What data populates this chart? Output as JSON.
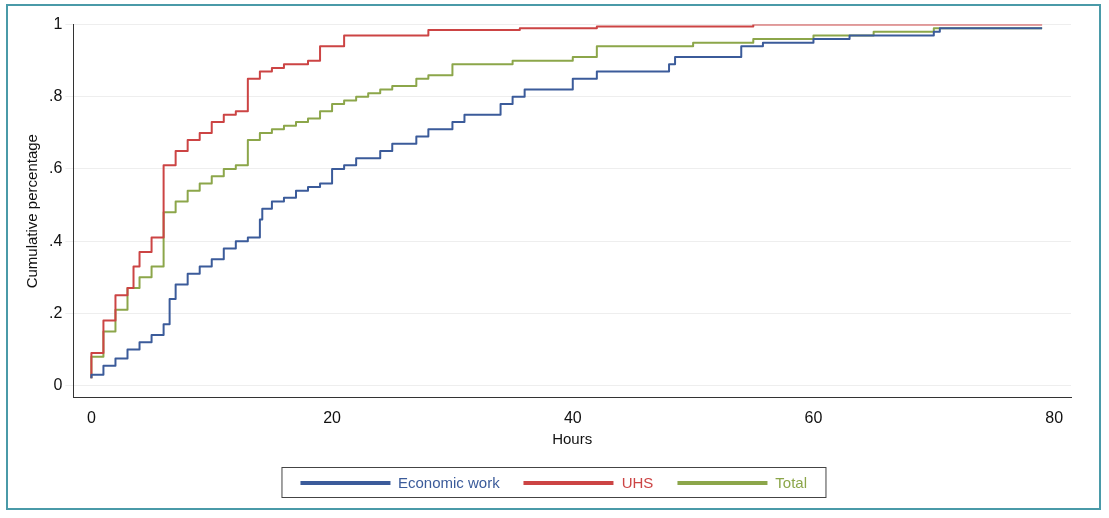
{
  "chart_data": {
    "type": "step",
    "xlabel": "Hours",
    "ylabel": "Cumulative percentage",
    "xlim": [
      -1.5,
      81.4
    ],
    "xticks": [
      0,
      20,
      40,
      60,
      80
    ],
    "ylim": [
      -0.034,
      1
    ],
    "yticks": [
      0,
      {
        "value": 0.2,
        "label": ".2"
      },
      {
        "value": 0.4,
        "label": ".4"
      },
      {
        "value": 0.6,
        "label": ".6"
      },
      {
        "value": 0.8,
        "label": ".8"
      },
      1
    ],
    "grid": "y",
    "legend": "bottom",
    "marker": "none",
    "line_style": "solid",
    "series": [
      {
        "name": "Economic work",
        "color": "#3b5b9a",
        "x": [
          0,
          1,
          2,
          3,
          4,
          5,
          6,
          6.5,
          7,
          8,
          9,
          10,
          11,
          12,
          13,
          14,
          14.2,
          15,
          16,
          17,
          18,
          19,
          20,
          21,
          22,
          24,
          25,
          27,
          28,
          30,
          31,
          34,
          35,
          36,
          40,
          42,
          48,
          48.5,
          54,
          55.8,
          60,
          63,
          70,
          70.5,
          79
        ],
        "values": [
          0.02,
          0.03,
          0.055,
          0.075,
          0.1,
          0.12,
          0.14,
          0.17,
          0.24,
          0.28,
          0.31,
          0.33,
          0.35,
          0.38,
          0.4,
          0.41,
          0.46,
          0.49,
          0.51,
          0.52,
          0.54,
          0.55,
          0.56,
          0.6,
          0.61,
          0.63,
          0.65,
          0.67,
          0.69,
          0.71,
          0.73,
          0.75,
          0.78,
          0.8,
          0.82,
          0.85,
          0.87,
          0.89,
          0.91,
          0.94,
          0.95,
          0.96,
          0.97,
          0.98,
          0.99
        ]
      },
      {
        "name": "UHS",
        "color": "#cc4444",
        "x": [
          0,
          1,
          2,
          3,
          3.5,
          4,
          5,
          6,
          7,
          8,
          9,
          10,
          11,
          12,
          13,
          14,
          15,
          16,
          18,
          19,
          21,
          28,
          35.6,
          42,
          55,
          79
        ],
        "values": [
          0.02,
          0.09,
          0.18,
          0.25,
          0.27,
          0.33,
          0.37,
          0.41,
          0.61,
          0.65,
          0.68,
          0.7,
          0.73,
          0.75,
          0.76,
          0.85,
          0.87,
          0.88,
          0.89,
          0.9,
          0.94,
          0.97,
          0.985,
          0.99,
          0.995,
          1
        ]
      },
      {
        "name": "Total",
        "color": "#8ca64a",
        "x": [
          0,
          1,
          2,
          3,
          4,
          5,
          6,
          7,
          8,
          9,
          10,
          11,
          12,
          13,
          14,
          15,
          16,
          17,
          18,
          19,
          20,
          21,
          22,
          23,
          24,
          25,
          27,
          28,
          30,
          35,
          40,
          42,
          50,
          55,
          60,
          65,
          70,
          79
        ],
        "values": [
          0.02,
          0.08,
          0.15,
          0.21,
          0.27,
          0.3,
          0.33,
          0.48,
          0.51,
          0.54,
          0.56,
          0.58,
          0.6,
          0.61,
          0.68,
          0.7,
          0.71,
          0.72,
          0.73,
          0.74,
          0.76,
          0.78,
          0.79,
          0.8,
          0.81,
          0.82,
          0.83,
          0.85,
          0.86,
          0.89,
          0.9,
          0.91,
          0.94,
          0.95,
          0.96,
          0.97,
          0.98,
          0.99
        ]
      }
    ]
  }
}
